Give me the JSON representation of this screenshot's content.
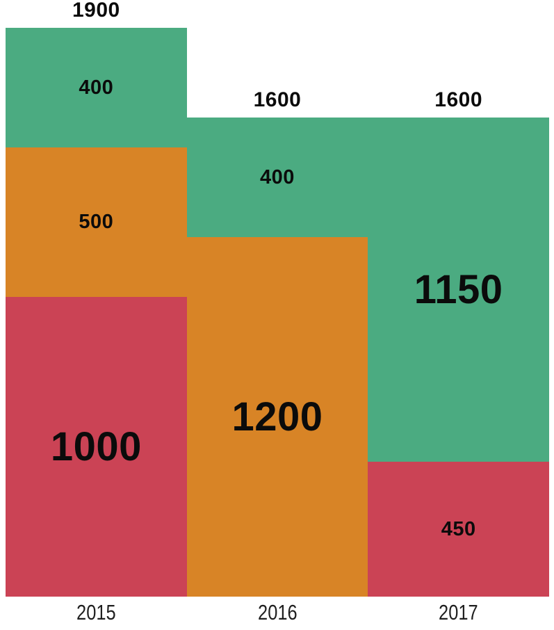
{
  "chart_data": {
    "type": "bar",
    "subtype": "stacked-vertical",
    "title": "",
    "xlabel": "",
    "ylabel": "",
    "categories": [
      "2015",
      "2016",
      "2017"
    ],
    "series": [
      {
        "name": "red",
        "color": "#CB4355",
        "values": [
          1000,
          0,
          450
        ]
      },
      {
        "name": "orange",
        "color": "#D88426",
        "values": [
          500,
          1200,
          0
        ]
      },
      {
        "name": "green",
        "color": "#4BAB81",
        "values": [
          400,
          400,
          1150
        ]
      }
    ],
    "stack_order_bottom_to_top": [
      "red",
      "orange",
      "green"
    ],
    "totals": [
      1900,
      1600,
      1600
    ],
    "ylim": [
      0,
      1900
    ],
    "grid": false,
    "legend": false,
    "axes_lines": false,
    "background_color": "#ffffff",
    "value_label_color": "#0b0b0b",
    "axis_label_color": "#1f1f1f"
  }
}
